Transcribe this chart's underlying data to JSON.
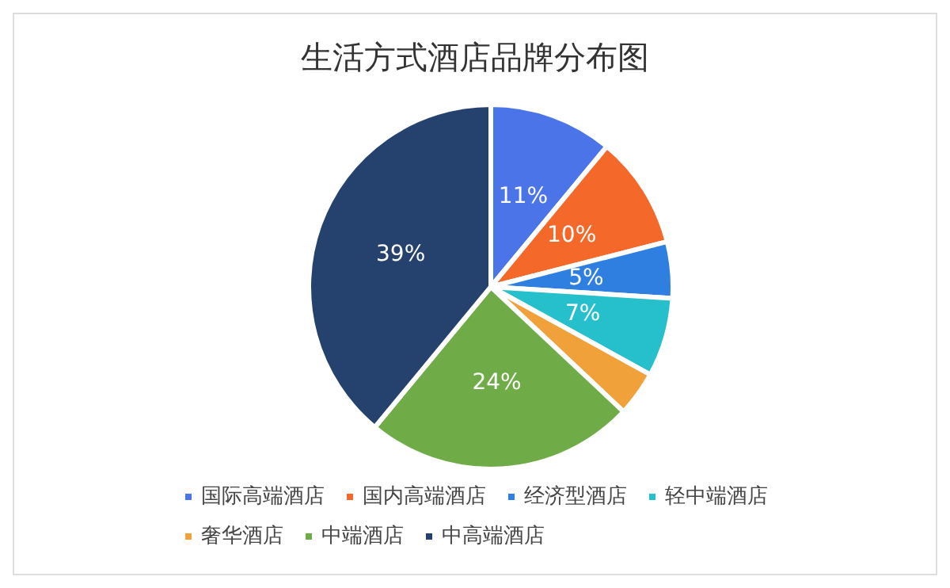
{
  "chart_data": {
    "type": "pie",
    "title": "生活方式酒店品牌分布图",
    "categories": [
      "国际高端酒店",
      "国内高端酒店",
      "经济型酒店",
      "轻中端酒店",
      "奢华酒店",
      "中端酒店",
      "中高端酒店"
    ],
    "values": [
      11,
      10,
      5,
      7,
      4,
      24,
      39
    ],
    "value_labels": [
      "11%",
      "10%",
      "5%",
      "7%",
      null,
      "24%",
      "39%"
    ],
    "colors": [
      "#4a74e8",
      "#f4682a",
      "#2f7fe0",
      "#26c0cc",
      "#f0a13a",
      "#6fac47",
      "#25426f"
    ],
    "legend": "bottom"
  }
}
